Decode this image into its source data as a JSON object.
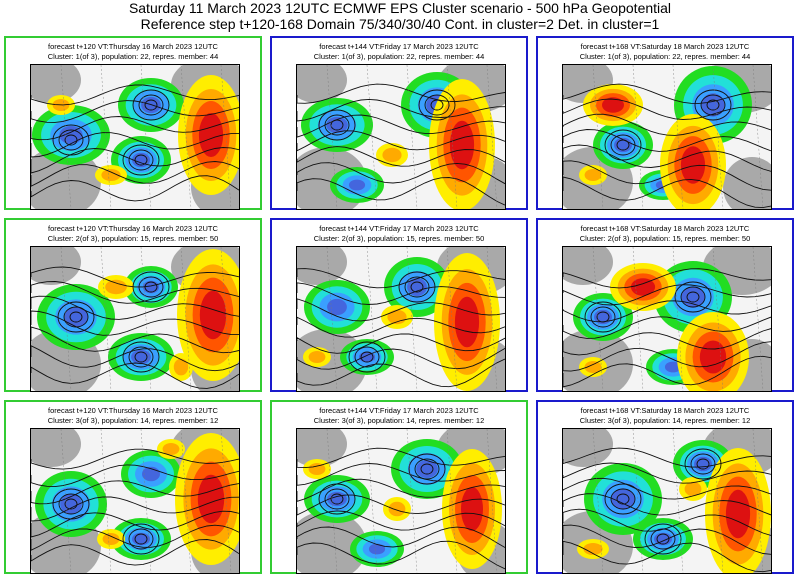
{
  "header": {
    "line1": "Saturday 11 March 2023 12UTC ECMWF EPS Cluster scenario - 500 hPa Geopotential",
    "line2": "Reference step t+120-168 Domain 75/340/30/40 Cont. in cluster=2 Det. in cluster=1"
  },
  "colors": {
    "green_frame": "#33cc33",
    "blue_frame": "#1a1acc"
  },
  "panels": [
    {
      "line1": "forecast t+120 VT:Thursday 16 March 2023 12UTC",
      "line2": "Cluster: 1(of 3), population: 22, repres. member: 44",
      "frame": "green"
    },
    {
      "line1": "forecast t+144 VT:Friday 17 March 2023 12UTC",
      "line2": "Cluster: 1(of 3), population: 22, repres. member: 44",
      "frame": "blue"
    },
    {
      "line1": "forecast t+168 VT:Saturday 18 March 2023 12UTC",
      "line2": "Cluster: 1(of 3), population: 22, repres. member: 44",
      "frame": "blue"
    },
    {
      "line1": "forecast t+120 VT:Thursday 16 March 2023 12UTC",
      "line2": "Cluster: 2(of 3), population: 15, repres. member: 50",
      "frame": "green"
    },
    {
      "line1": "forecast t+144 VT:Friday 17 March 2023 12UTC",
      "line2": "Cluster: 2(of 3), population: 15, repres. member: 50",
      "frame": "blue"
    },
    {
      "line1": "forecast t+168 VT:Saturday 18 March 2023 12UTC",
      "line2": "Cluster: 2(of 3), population: 15, repres. member: 50",
      "frame": "blue"
    },
    {
      "line1": "forecast t+120 VT:Thursday 16 March 2023 12UTC",
      "line2": "Cluster: 3(of 3), population: 14, repres. member: 12",
      "frame": "green"
    },
    {
      "line1": "forecast t+144 VT:Friday 17 March 2023 12UTC",
      "line2": "Cluster: 3(of 3), population: 14, repres. member: 12",
      "frame": "green"
    },
    {
      "line1": "forecast t+168 VT:Saturday 18 March 2023 12UTC",
      "line2": "Cluster: 3(of 3), population: 14, repres. member: 12",
      "frame": "blue"
    }
  ]
}
